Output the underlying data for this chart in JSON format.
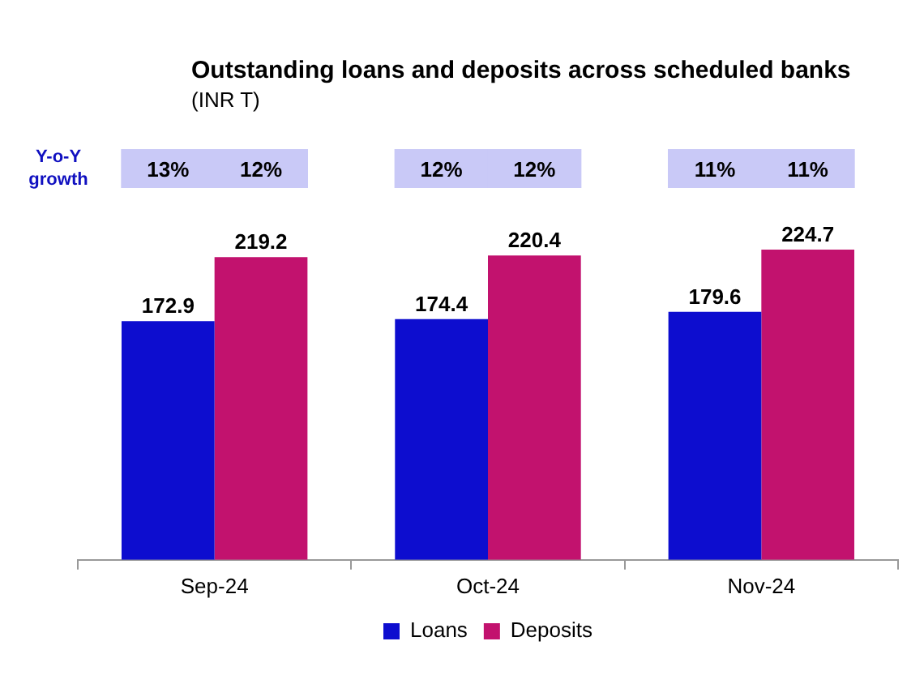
{
  "chart_data": {
    "type": "bar",
    "title": "Outstanding loans and deposits across scheduled banks",
    "subtitle": "(INR T)",
    "categories": [
      "Sep-24",
      "Oct-24",
      "Nov-24"
    ],
    "series": [
      {
        "name": "Loans",
        "color": "#0d0dcf",
        "values": [
          172.9,
          174.4,
          179.6
        ]
      },
      {
        "name": "Deposits",
        "color": "#c2126e",
        "values": [
          219.2,
          220.4,
          224.7
        ]
      }
    ],
    "data_labels": true,
    "legend": "bottom",
    "annotations": [
      "Y-o-Y growth",
      "13%",
      "12%",
      "12%",
      "12%",
      "11%",
      "11%"
    ]
  }
}
